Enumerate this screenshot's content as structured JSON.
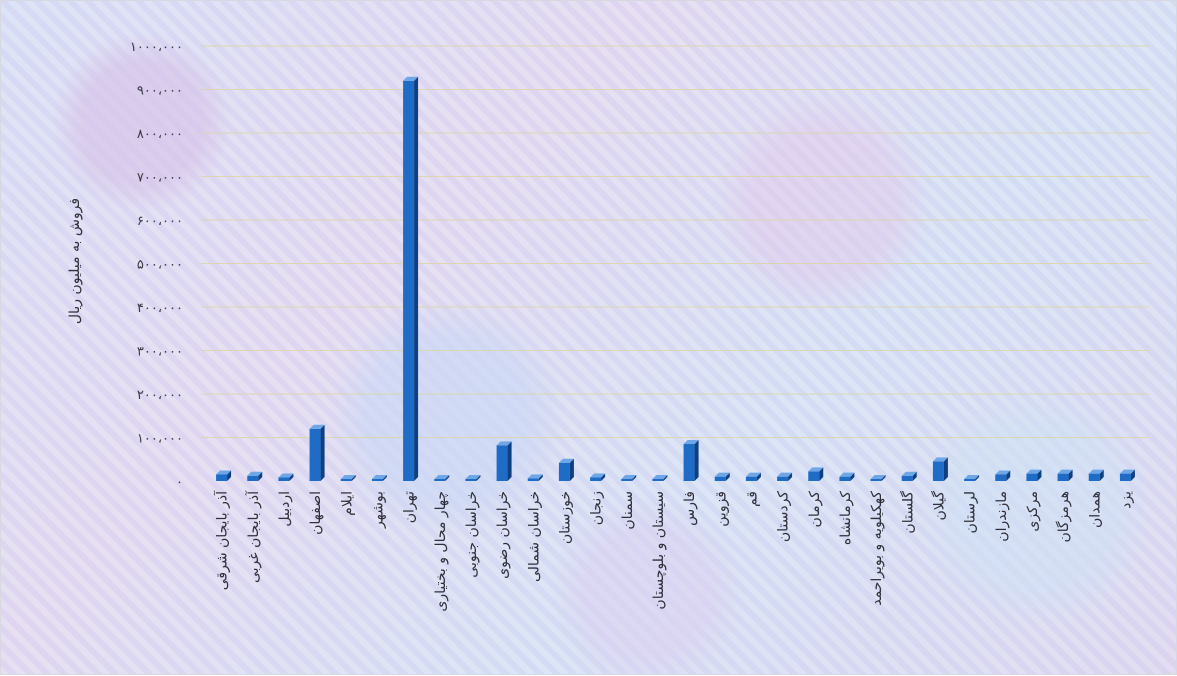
{
  "chart_data": {
    "type": "bar",
    "title": "",
    "xlabel": "",
    "ylabel": "فروش به میلیون ریال",
    "ylim": [
      0,
      1000000
    ],
    "y_ticks": [
      0,
      100000,
      200000,
      300000,
      400000,
      500000,
      600000,
      700000,
      800000,
      900000,
      1000000
    ],
    "y_tick_labels": [
      "۰",
      "۱۰۰،۰۰۰",
      "۲۰۰،۰۰۰",
      "۳۰۰،۰۰۰",
      "۴۰۰،۰۰۰",
      "۵۰۰،۰۰۰",
      "۶۰۰،۰۰۰",
      "۷۰۰،۰۰۰",
      "۸۰۰،۰۰۰",
      "۹۰۰،۰۰۰",
      "۱۰۰۰،۰۰۰"
    ],
    "grid": true,
    "legend": "none",
    "bar_color": "#1f6cc7",
    "bar_side_color": "#0d3f82",
    "bar_top_color": "#6fa6e6",
    "categories": [
      "آذر بایجان شرقی",
      "آذر بایجان غربی",
      "اردبیل",
      "اصفهان",
      "ایلام",
      "بوشهر",
      "تهران",
      "چهار محال و بختیاری",
      "خراسان جنوبی",
      "خراسان رضوی",
      "خراسان شمالی",
      "خوزستان",
      "زنجان",
      "سمنان",
      "سیستان و بلوچستان",
      "فارس",
      "قزوین",
      "قم",
      "کردستان",
      "کرمان",
      "کرمانشاه",
      "کهکیلویه و بویراحمد",
      "گلستان",
      "گیلان",
      "لرستان",
      "مازندران",
      "مرکزی",
      "هرمزگان",
      "همدان",
      "یزد"
    ],
    "values": [
      15000,
      12000,
      8000,
      120000,
      3000,
      3000,
      920000,
      3000,
      3000,
      82000,
      6000,
      42000,
      8000,
      4000,
      4000,
      85000,
      10000,
      10000,
      10000,
      22000,
      10000,
      3000,
      12000,
      45000,
      4000,
      15000,
      17000,
      17000,
      17000,
      17000
    ]
  }
}
